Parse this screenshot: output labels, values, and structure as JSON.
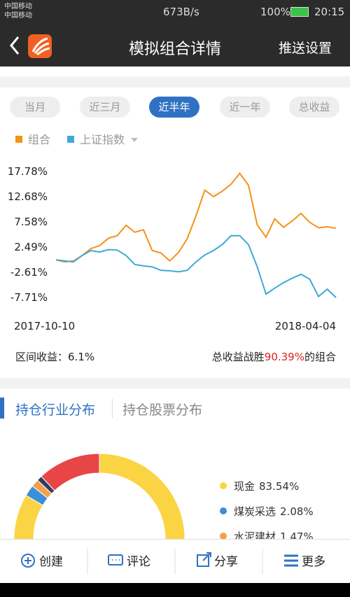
{
  "status_bar": {
    "carrier_1": "中国移动",
    "carrier_2": "中国移动",
    "speed": "673B/s",
    "battery": "100%",
    "time": "20:15"
  },
  "header": {
    "title": "模拟组合详情",
    "action": "推送设置"
  },
  "period_tabs": [
    "当月",
    "近三月",
    "近半年",
    "近一年",
    "总收益"
  ],
  "active_period_tab": 2,
  "chart_data": [
    {
      "type": "line",
      "categories": [
        "2017-10-10",
        null,
        null,
        null,
        null,
        null,
        null,
        null,
        null,
        null,
        null,
        null,
        null,
        null,
        null,
        null,
        null,
        null,
        null,
        null,
        null,
        null,
        null,
        null,
        null,
        null,
        null,
        null,
        null,
        null,
        null,
        null,
        "2018-04-04"
      ],
      "series": [
        {
          "name": "组合",
          "color": "#f39317",
          "values": [
            -0.1,
            -0.5,
            -0.3,
            0.8,
            2.2,
            2.8,
            4.3,
            4.8,
            6.9,
            5.5,
            6.0,
            1.8,
            1.3,
            -0.3,
            1.4,
            4.2,
            8.8,
            14.0,
            12.7,
            13.8,
            15.2,
            17.4,
            15.0,
            7.0,
            4.5,
            8.2,
            6.5,
            7.8,
            9.3,
            7.5,
            6.4,
            6.6,
            6.3
          ]
        },
        {
          "name": "上证指数",
          "color": "#3fa9d6",
          "values": [
            -0.1,
            -0.3,
            -0.5,
            0.8,
            1.8,
            1.5,
            2.0,
            1.9,
            0.8,
            -1.0,
            -1.3,
            -1.5,
            -2.2,
            -2.3,
            -2.5,
            -2.2,
            -0.5,
            0.9,
            1.8,
            3.0,
            4.8,
            4.8,
            3.0,
            -1.5,
            -7.0,
            -5.8,
            -4.7,
            -3.8,
            -3.0,
            -4.0,
            -7.5,
            -6.0,
            -7.7
          ]
        }
      ],
      "ylim": [
        -9.1,
        19.2
      ],
      "yticks": [
        {
          "value": 17.78,
          "label": "17.78%"
        },
        {
          "value": 12.68,
          "label": "12.68%"
        },
        {
          "value": 7.58,
          "label": "7.58%"
        },
        {
          "value": 2.49,
          "label": "2.49%"
        },
        {
          "value": -2.61,
          "label": "-2.61%"
        },
        {
          "value": -7.71,
          "label": "-7.71%"
        }
      ],
      "grid": false
    },
    {
      "type": "pie",
      "categories": [
        "现金",
        "煤炭采选",
        "水泥建材",
        null,
        null
      ],
      "values": [
        83.54,
        2.08,
        1.47,
        1.0,
        11.91
      ],
      "value_labels": [
        "83.54%",
        "2.08%",
        "1.47%",
        null,
        null
      ],
      "colors": [
        "#fbd443",
        "#3a8fd6",
        "#f5a04a",
        "#2d3e66",
        "#e84646"
      ]
    }
  ],
  "summary": {
    "range_label": "区间收益：",
    "range_value": "6.1%",
    "beat_prefix": "总收益战胜",
    "beat_value": "90.39%",
    "beat_suffix": "的组合"
  },
  "holding_tabs": [
    "持仓行业分布",
    "持仓股票分布"
  ],
  "bottom_bar": [
    "创建",
    "评论",
    "分享",
    "更多"
  ]
}
